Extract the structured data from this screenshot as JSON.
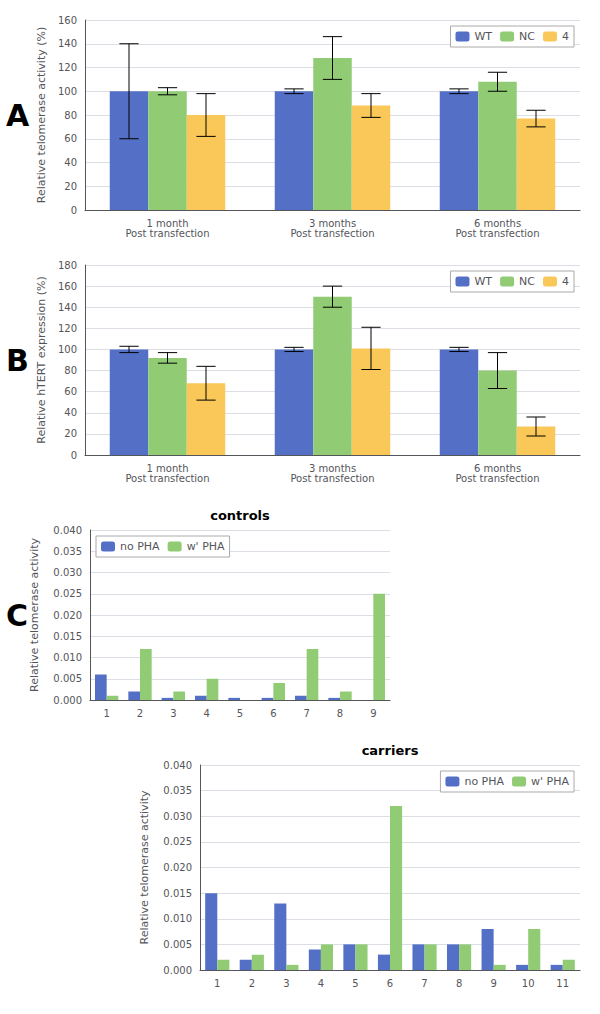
{
  "chart_data": [
    {
      "type": "bar",
      "annotation": "A",
      "ylabel": "Relative telomerase activity (%)",
      "categories": [
        "1 month\nPost transfection",
        "3 months\nPost transfection",
        "6 months\nPost transfection"
      ],
      "series": [
        {
          "name": "WT",
          "values": [
            100,
            100,
            100
          ],
          "errors": [
            40,
            2,
            2
          ]
        },
        {
          "name": "NC",
          "values": [
            100,
            128,
            108
          ],
          "errors": [
            3,
            18,
            8
          ]
        },
        {
          "name": "4",
          "values": [
            80,
            88,
            77
          ],
          "errors": [
            18,
            10,
            7
          ]
        }
      ],
      "ylim": [
        0,
        160
      ],
      "yticks": [
        0,
        20,
        40,
        60,
        80,
        100,
        120,
        140,
        160
      ],
      "grid": true,
      "legend": "upper right"
    },
    {
      "type": "bar",
      "annotation": "B",
      "ylabel": "Relative hTERT expression (%)",
      "categories": [
        "1 month\nPost transfection",
        "3 months\nPost transfection",
        "6 months\nPost transfection"
      ],
      "series": [
        {
          "name": "WT",
          "values": [
            100,
            100,
            100
          ],
          "errors": [
            3,
            2,
            2
          ]
        },
        {
          "name": "NC",
          "values": [
            92,
            150,
            80
          ],
          "errors": [
            5,
            10,
            17
          ]
        },
        {
          "name": "4",
          "values": [
            68,
            101,
            27
          ],
          "errors": [
            16,
            20,
            9
          ]
        }
      ],
      "ylim": [
        0,
        180
      ],
      "yticks": [
        0,
        20,
        40,
        60,
        80,
        100,
        120,
        140,
        160,
        180
      ],
      "grid": true,
      "legend": "upper right"
    },
    {
      "type": "bar",
      "annotation": "C",
      "title": "controls",
      "ylabel": "Relative telomerase activity",
      "categories": [
        "1",
        "2",
        "3",
        "4",
        "5",
        "6",
        "7",
        "8",
        "9"
      ],
      "series": [
        {
          "name": "no PHA",
          "values": [
            0.006,
            0.002,
            0.0005,
            0.001,
            0.0005,
            0.0005,
            0.001,
            0.0005,
            0.0
          ]
        },
        {
          "name": "w' PHA",
          "values": [
            0.001,
            0.012,
            0.002,
            0.005,
            0.0,
            0.004,
            0.012,
            0.002,
            0.025
          ]
        }
      ],
      "ylim": [
        0,
        0.04
      ],
      "yticks": [
        {
          "value": 0,
          "label": "0.000"
        },
        0.005,
        {
          "value": 0.01,
          "label": "0.010"
        },
        0.015,
        {
          "value": 0.02,
          "label": "0.020"
        },
        0.025,
        {
          "value": 0.03,
          "label": "0.030"
        },
        0.035,
        {
          "value": 0.04,
          "label": "0.040"
        }
      ],
      "grid": true,
      "legend": "upper left"
    },
    {
      "type": "bar",
      "title": "carriers",
      "ylabel": "Relative telomerase activity",
      "categories": [
        "1",
        "2",
        "3",
        "4",
        "5",
        "6",
        "7",
        "8",
        "9",
        "10",
        "11"
      ],
      "series": [
        {
          "name": "no PHA",
          "values": [
            0.015,
            0.002,
            0.013,
            0.004,
            0.005,
            0.003,
            0.005,
            0.005,
            0.008,
            0.001,
            0.001
          ]
        },
        {
          "name": "w' PHA",
          "values": [
            0.002,
            0.003,
            0.001,
            0.005,
            0.005,
            0.032,
            0.005,
            0.005,
            0.001,
            0.008,
            0.002
          ]
        }
      ],
      "ylim": [
        0,
        0.04
      ],
      "yticks": [
        {
          "value": 0,
          "label": "0.000"
        },
        0.005,
        {
          "value": 0.01,
          "label": "0.010"
        },
        0.015,
        {
          "value": 0.02,
          "label": "0.020"
        },
        0.025,
        {
          "value": 0.03,
          "label": "0.030"
        },
        0.035,
        {
          "value": 0.04,
          "label": "0.040"
        }
      ],
      "grid": true,
      "legend": "upper right"
    }
  ]
}
